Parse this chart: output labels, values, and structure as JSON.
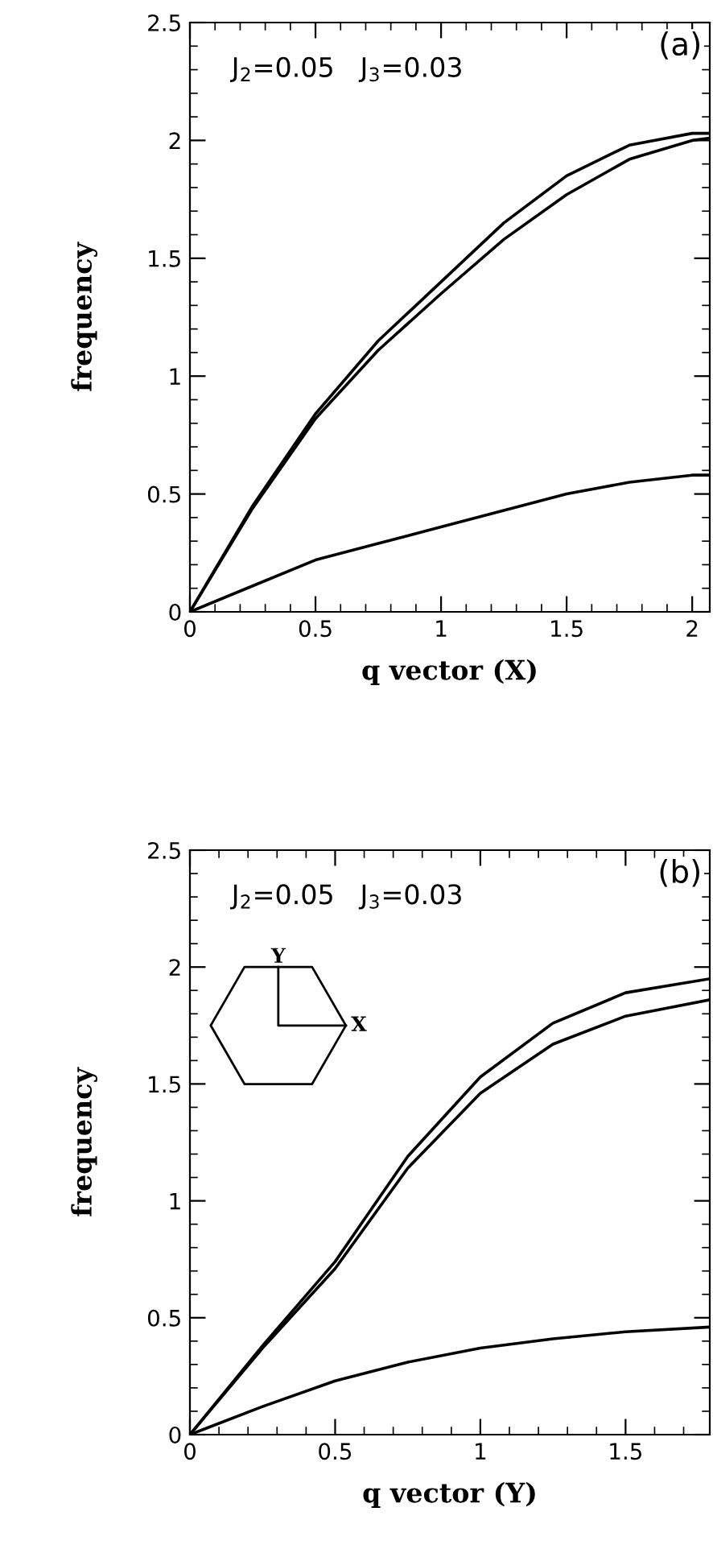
{
  "chart_data": [
    {
      "type": "line",
      "xlabel": "q vector (X)",
      "ylabel": "frequency",
      "annotations": [
        "(a)",
        "J$_{2}$=0.05   J$_{3}$=0.03"
      ],
      "xlim": [
        0,
        2.07
      ],
      "ylim": [
        0,
        2.5
      ],
      "xticks": [
        0,
        0.5,
        1,
        1.5,
        2
      ],
      "yticks": [
        0,
        0.5,
        1,
        1.5,
        2,
        2.5
      ],
      "grid": false,
      "marker": "none",
      "line_style": "solid",
      "series": [
        {
          "color": "#000000",
          "x": [
            0,
            0.25,
            0.5,
            0.75,
            1,
            1.25,
            1.5,
            1.75,
            2,
            2.07
          ],
          "values": [
            0,
            0.45,
            0.84,
            1.15,
            1.4,
            1.65,
            1.85,
            1.98,
            2.03,
            2.03
          ]
        },
        {
          "color": "#000000",
          "x": [
            0,
            0.25,
            0.5,
            0.75,
            1,
            1.25,
            1.5,
            1.75,
            2,
            2.07
          ],
          "values": [
            0,
            0.44,
            0.82,
            1.11,
            1.35,
            1.58,
            1.77,
            1.92,
            2.0,
            2.01
          ]
        },
        {
          "color": "#000000",
          "x": [
            0,
            0.25,
            0.5,
            0.75,
            1,
            1.25,
            1.5,
            1.75,
            2,
            2.07
          ],
          "values": [
            0,
            0.11,
            0.22,
            0.29,
            0.36,
            0.43,
            0.5,
            0.55,
            0.58,
            0.58
          ]
        }
      ]
    },
    {
      "type": "line",
      "xlabel": "q vector (Y)",
      "ylabel": "frequency",
      "annotations": [
        "(b)",
        "J$_{2}$=0.05   J$_{3}$=0.03",
        "Y",
        "X"
      ],
      "xlim": [
        0,
        1.79
      ],
      "ylim": [
        0,
        2.5
      ],
      "xticks": [
        0,
        0.5,
        1,
        1.5
      ],
      "yticks": [
        0,
        0.5,
        1,
        1.5,
        2,
        2.5
      ],
      "grid": false,
      "marker": "none",
      "line_style": "solid",
      "series": [
        {
          "color": "#000000",
          "x": [
            0,
            0.25,
            0.5,
            0.75,
            1,
            1.25,
            1.5,
            1.79
          ],
          "values": [
            0,
            0.38,
            0.74,
            1.19,
            1.53,
            1.76,
            1.89,
            1.95
          ]
        },
        {
          "color": "#000000",
          "x": [
            0,
            0.25,
            0.5,
            0.75,
            1,
            1.25,
            1.5,
            1.79
          ],
          "values": [
            0,
            0.37,
            0.71,
            1.14,
            1.46,
            1.67,
            1.79,
            1.86
          ]
        },
        {
          "color": "#000000",
          "x": [
            0,
            0.25,
            0.5,
            0.75,
            1,
            1.25,
            1.5,
            1.79
          ],
          "values": [
            0,
            0.12,
            0.23,
            0.31,
            0.37,
            0.41,
            0.44,
            0.46
          ]
        }
      ]
    }
  ]
}
